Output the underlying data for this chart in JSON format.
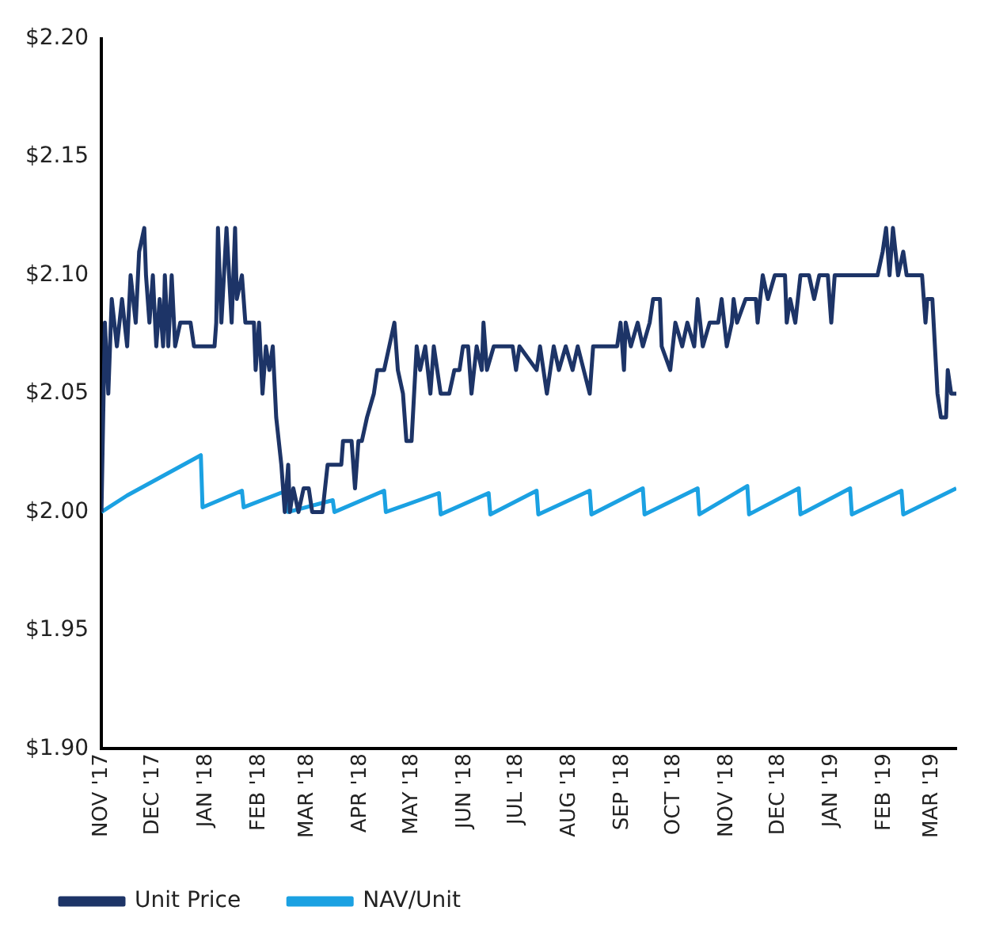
{
  "chart_data": {
    "type": "line",
    "xlim": [
      "2017-11-01",
      "2019-03-15"
    ],
    "xticks": [
      {
        "value": "2017-11-01",
        "label": "NOV '17"
      },
      {
        "value": "2017-12-01",
        "label": "DEC '17"
      },
      {
        "value": "2018-01-01",
        "label": "JAN '18"
      },
      {
        "value": "2018-02-01",
        "label": "FEB '18"
      },
      {
        "value": "2018-03-01",
        "label": "MAR '18"
      },
      {
        "value": "2018-04-01",
        "label": "APR '18"
      },
      {
        "value": "2018-05-01",
        "label": "MAY '18"
      },
      {
        "value": "2018-06-01",
        "label": "JUN '18"
      },
      {
        "value": "2018-07-01",
        "label": "JUL '18"
      },
      {
        "value": "2018-08-01",
        "label": "AUG '18"
      },
      {
        "value": "2018-09-01",
        "label": "SEP '18"
      },
      {
        "value": "2018-10-01",
        "label": "OCT '18"
      },
      {
        "value": "2018-11-01",
        "label": "NOV '18"
      },
      {
        "value": "2018-12-01",
        "label": "DEC '18"
      },
      {
        "value": "2019-01-01",
        "label": "JAN '19"
      },
      {
        "value": "2019-02-01",
        "label": "FEB '19"
      },
      {
        "value": "2019-03-01",
        "label": "MAR '19"
      }
    ],
    "ylim": [
      1.9,
      2.2
    ],
    "yticks": [
      {
        "value": 1.9,
        "label": "$1.90"
      },
      {
        "value": 1.95,
        "label": "$1.95"
      },
      {
        "value": 2.0,
        "label": "$2.00"
      },
      {
        "value": 2.05,
        "label": "$2.05"
      },
      {
        "value": 2.1,
        "label": "$2.10"
      },
      {
        "value": 2.15,
        "label": "$2.15"
      },
      {
        "value": 2.2,
        "label": "$2.20"
      }
    ],
    "grid": false,
    "legend": "bottom",
    "marker": "none",
    "line_style": "solid",
    "series": [
      {
        "name": "Unit Price",
        "color": "#1d3467",
        "x": [
          "2017-11-01",
          "2017-11-03",
          "2017-11-05",
          "2017-11-07",
          "2017-11-10",
          "2017-11-13",
          "2017-11-16",
          "2017-11-18",
          "2017-11-21",
          "2017-11-23",
          "2017-11-26",
          "2017-11-27",
          "2017-11-29",
          "2017-12-01",
          "2017-12-03",
          "2017-12-05",
          "2017-12-07",
          "2017-12-08",
          "2017-12-10",
          "2017-12-12",
          "2017-12-14",
          "2017-12-17",
          "2017-12-23",
          "2017-12-25",
          "2018-01-06",
          "2018-01-07",
          "2018-01-08",
          "2018-01-10",
          "2018-01-13",
          "2018-01-16",
          "2018-01-18",
          "2018-01-19",
          "2018-01-22",
          "2018-01-24",
          "2018-01-29",
          "2018-01-30",
          "2018-02-01",
          "2018-02-03",
          "2018-02-05",
          "2018-02-07",
          "2018-02-09",
          "2018-02-11",
          "2018-02-14",
          "2018-02-16",
          "2018-02-18",
          "2018-02-19",
          "2018-02-21",
          "2018-02-24",
          "2018-02-27",
          "2018-03-02",
          "2018-03-04",
          "2018-03-10",
          "2018-03-13",
          "2018-03-21",
          "2018-03-22",
          "2018-03-27",
          "2018-03-29",
          "2018-03-31",
          "2018-04-02",
          "2018-04-05",
          "2018-04-09",
          "2018-04-11",
          "2018-04-15",
          "2018-04-18",
          "2018-04-21",
          "2018-04-23",
          "2018-04-26",
          "2018-04-28",
          "2018-05-01",
          "2018-05-04",
          "2018-05-06",
          "2018-05-09",
          "2018-05-12",
          "2018-05-14",
          "2018-05-16",
          "2018-05-18",
          "2018-05-23",
          "2018-05-26",
          "2018-05-29",
          "2018-05-31",
          "2018-06-03",
          "2018-06-05",
          "2018-06-08",
          "2018-06-11",
          "2018-06-12",
          "2018-06-14",
          "2018-06-18",
          "2018-06-29",
          "2018-07-01",
          "2018-07-03",
          "2018-07-13",
          "2018-07-15",
          "2018-07-19",
          "2018-07-23",
          "2018-07-26",
          "2018-07-30",
          "2018-08-03",
          "2018-08-06",
          "2018-08-13",
          "2018-08-15",
          "2018-08-29",
          "2018-08-31",
          "2018-09-02",
          "2018-09-03",
          "2018-09-06",
          "2018-09-10",
          "2018-09-13",
          "2018-09-17",
          "2018-09-19",
          "2018-09-23",
          "2018-09-24",
          "2018-09-29",
          "2018-10-02",
          "2018-10-06",
          "2018-10-09",
          "2018-10-13",
          "2018-10-15",
          "2018-10-18",
          "2018-10-22",
          "2018-10-27",
          "2018-10-29",
          "2018-11-01",
          "2018-11-04",
          "2018-11-05",
          "2018-11-07",
          "2018-11-12",
          "2018-11-18",
          "2018-11-19",
          "2018-11-22",
          "2018-11-25",
          "2018-11-29",
          "2018-12-05",
          "2018-12-06",
          "2018-12-08",
          "2018-12-11",
          "2018-12-14",
          "2018-12-19",
          "2018-12-22",
          "2018-12-25",
          "2018-12-30",
          "2019-01-01",
          "2019-01-03",
          "2019-01-28",
          "2019-01-31",
          "2019-02-02",
          "2019-02-04",
          "2019-02-06",
          "2019-02-09",
          "2019-02-12",
          "2019-02-14",
          "2019-02-23",
          "2019-02-25",
          "2019-02-26",
          "2019-03-01",
          "2019-03-04",
          "2019-03-06",
          "2019-03-09",
          "2019-03-10",
          "2019-03-12",
          "2019-03-15"
        ],
        "values": [
          2.0,
          2.08,
          2.05,
          2.09,
          2.07,
          2.09,
          2.07,
          2.1,
          2.08,
          2.11,
          2.12,
          2.1,
          2.08,
          2.1,
          2.07,
          2.09,
          2.07,
          2.1,
          2.07,
          2.1,
          2.07,
          2.08,
          2.08,
          2.07,
          2.07,
          2.08,
          2.12,
          2.08,
          2.12,
          2.08,
          2.12,
          2.09,
          2.1,
          2.08,
          2.08,
          2.06,
          2.08,
          2.05,
          2.07,
          2.06,
          2.07,
          2.04,
          2.02,
          2.0,
          2.02,
          2.0,
          2.01,
          2.0,
          2.01,
          2.01,
          2.0,
          2.0,
          2.02,
          2.02,
          2.03,
          2.03,
          2.01,
          2.03,
          2.03,
          2.04,
          2.05,
          2.06,
          2.06,
          2.07,
          2.08,
          2.06,
          2.05,
          2.03,
          2.03,
          2.07,
          2.06,
          2.07,
          2.05,
          2.07,
          2.06,
          2.05,
          2.05,
          2.06,
          2.06,
          2.07,
          2.07,
          2.05,
          2.07,
          2.06,
          2.08,
          2.06,
          2.07,
          2.07,
          2.06,
          2.07,
          2.06,
          2.07,
          2.05,
          2.07,
          2.06,
          2.07,
          2.06,
          2.07,
          2.05,
          2.07,
          2.07,
          2.08,
          2.06,
          2.08,
          2.07,
          2.08,
          2.07,
          2.08,
          2.09,
          2.09,
          2.07,
          2.06,
          2.08,
          2.07,
          2.08,
          2.07,
          2.09,
          2.07,
          2.08,
          2.08,
          2.09,
          2.07,
          2.08,
          2.09,
          2.08,
          2.09,
          2.09,
          2.08,
          2.1,
          2.09,
          2.1,
          2.1,
          2.08,
          2.09,
          2.08,
          2.1,
          2.1,
          2.09,
          2.1,
          2.1,
          2.08,
          2.1,
          2.1,
          2.11,
          2.12,
          2.1,
          2.12,
          2.1,
          2.11,
          2.1,
          2.1,
          2.08,
          2.09,
          2.09,
          2.05,
          2.04,
          2.04,
          2.06,
          2.05,
          2.05
        ]
      },
      {
        "name": "NAV/Unit",
        "color": "#1ba1e2",
        "x": [
          "2017-11-01",
          "2017-11-16",
          "2017-12-29",
          "2017-12-30",
          "2018-01-22",
          "2018-01-23",
          "2018-02-17",
          "2018-02-18",
          "2018-03-16",
          "2018-03-17",
          "2018-04-15",
          "2018-04-16",
          "2018-05-17",
          "2018-05-18",
          "2018-06-15",
          "2018-06-16",
          "2018-07-13",
          "2018-07-14",
          "2018-08-13",
          "2018-08-14",
          "2018-09-13",
          "2018-09-14",
          "2018-10-15",
          "2018-10-16",
          "2018-11-13",
          "2018-11-14",
          "2018-12-13",
          "2018-12-14",
          "2019-01-12",
          "2019-01-13",
          "2019-02-11",
          "2019-02-12",
          "2019-03-15"
        ],
        "values": [
          2.0,
          2.007,
          2.024,
          2.002,
          2.009,
          2.002,
          2.009,
          2.0,
          2.005,
          2.0,
          2.009,
          2.0,
          2.008,
          1.999,
          2.008,
          1.999,
          2.009,
          1.999,
          2.009,
          1.999,
          2.01,
          1.999,
          2.01,
          1.999,
          2.011,
          1.999,
          2.01,
          1.999,
          2.01,
          1.999,
          2.009,
          1.999,
          2.01
        ]
      }
    ]
  }
}
